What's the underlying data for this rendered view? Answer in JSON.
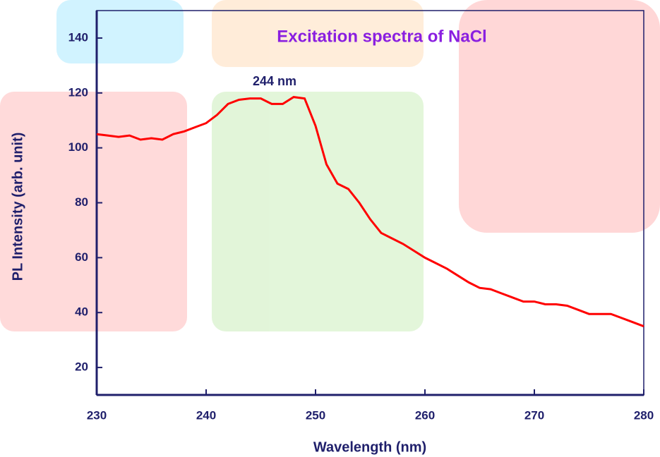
{
  "chart_data": {
    "type": "line",
    "title": "Excitation spectra of NaCl",
    "x_label": "Wavelength (nm)",
    "y_label": "PL Intensity (arb. unit)",
    "annotation": "244 nm",
    "xlim": [
      230,
      280
    ],
    "ylim": [
      10,
      150
    ],
    "xticks": [
      230,
      240,
      250,
      260,
      270,
      280
    ],
    "yticks": [
      20,
      40,
      60,
      80,
      100,
      120,
      140
    ],
    "x": [
      230,
      231,
      232,
      233,
      234,
      235,
      236,
      237,
      238,
      239,
      240,
      241,
      242,
      243,
      244,
      245,
      246,
      247,
      248,
      249,
      250,
      251,
      252,
      253,
      254,
      255,
      256,
      257,
      258,
      259,
      260,
      261,
      262,
      263,
      264,
      265,
      266,
      267,
      268,
      269,
      270,
      271,
      272,
      273,
      274,
      275,
      276,
      277,
      278,
      279,
      280
    ],
    "series": [
      {
        "color": "#ff0000",
        "values": [
          105,
          104.5,
          104,
          104.5,
          103,
          103.5,
          103,
          105,
          106,
          107.5,
          109,
          112,
          116,
          117.5,
          118,
          118,
          116,
          116,
          118.5,
          118,
          108,
          94,
          87,
          85,
          80,
          74,
          69,
          67,
          65,
          62.5,
          60,
          58,
          56,
          53.5,
          51,
          49,
          48.5,
          47,
          45.5,
          44,
          44,
          43,
          43,
          42.5,
          41,
          39.5,
          39.5,
          39.5,
          38,
          36.5,
          35
        ]
      }
    ]
  }
}
